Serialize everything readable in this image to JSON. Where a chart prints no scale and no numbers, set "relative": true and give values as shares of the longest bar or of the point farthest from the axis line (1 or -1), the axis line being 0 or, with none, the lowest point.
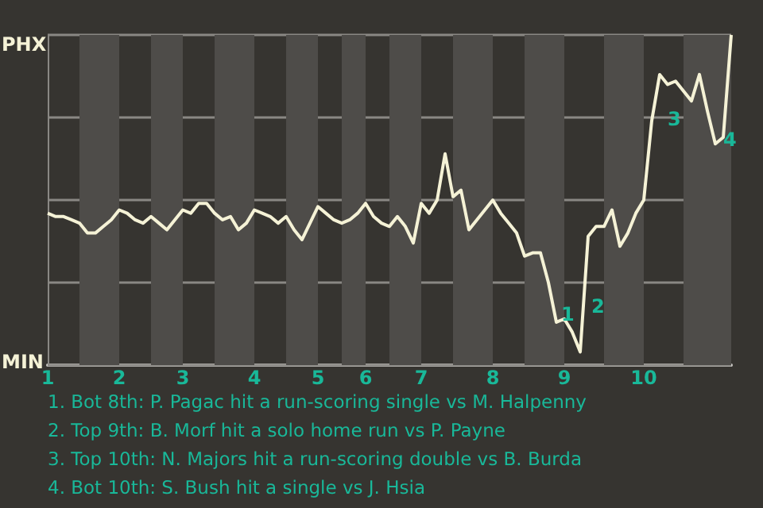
{
  "chart_data": {
    "type": "line",
    "relative": true,
    "categories": [
      "1",
      null,
      null,
      null,
      null,
      null,
      null,
      null,
      null,
      "2",
      null,
      null,
      null,
      null,
      null,
      null,
      null,
      "3",
      null,
      null,
      null,
      null,
      null,
      null,
      null,
      null,
      "4",
      null,
      null,
      null,
      null,
      null,
      null,
      null,
      "5",
      null,
      null,
      null,
      null,
      null,
      "6",
      null,
      null,
      null,
      null,
      null,
      null,
      "7",
      null,
      null,
      null,
      null,
      null,
      null,
      null,
      null,
      "8",
      null,
      null,
      null,
      null,
      null,
      null,
      null,
      null,
      "9",
      null,
      null,
      null,
      null,
      null,
      null,
      null,
      null,
      null,
      "10",
      null,
      null,
      null,
      null,
      null,
      null,
      null,
      null,
      null,
      null,
      null
    ],
    "series": [
      {
        "color": "#f5f2d6",
        "values": [
          0.46,
          0.45,
          0.45,
          0.44,
          0.43,
          0.4,
          0.4,
          0.42,
          0.44,
          0.47,
          0.46,
          0.44,
          0.43,
          0.45,
          0.43,
          0.41,
          0.44,
          0.47,
          0.46,
          0.49,
          0.49,
          0.46,
          0.44,
          0.45,
          0.41,
          0.43,
          0.47,
          0.46,
          0.45,
          0.43,
          0.45,
          0.41,
          0.38,
          0.43,
          0.48,
          0.46,
          0.44,
          0.43,
          0.44,
          0.46,
          0.49,
          0.45,
          0.43,
          0.42,
          0.45,
          0.42,
          0.37,
          0.49,
          0.46,
          0.5,
          0.64,
          0.51,
          0.53,
          0.41,
          0.44,
          0.47,
          0.5,
          0.46,
          0.43,
          0.4,
          0.33,
          0.34,
          0.34,
          0.25,
          0.13,
          0.14,
          0.1,
          0.04,
          0.39,
          0.42,
          0.42,
          0.47,
          0.36,
          0.4,
          0.46,
          0.5,
          0.74,
          0.88,
          0.85,
          0.86,
          0.83,
          0.8,
          0.88,
          0.77,
          0.67,
          0.69,
          1.0
        ]
      }
    ],
    "grid": "y",
    "annotations": [
      "PHX",
      "MIN",
      "1",
      "2",
      "3",
      "4",
      "1. Bot 8th: P. Pagac hit a run-scoring single vs M. Halpenny",
      "2. Top 9th: B. Morf hit a solo home run vs P. Payne",
      "3. Top 10th: N. Majors hit a run-scoring double vs B. Burda",
      "4. Bot 10th: S. Bush hit a single vs J. Hsia"
    ]
  }
}
